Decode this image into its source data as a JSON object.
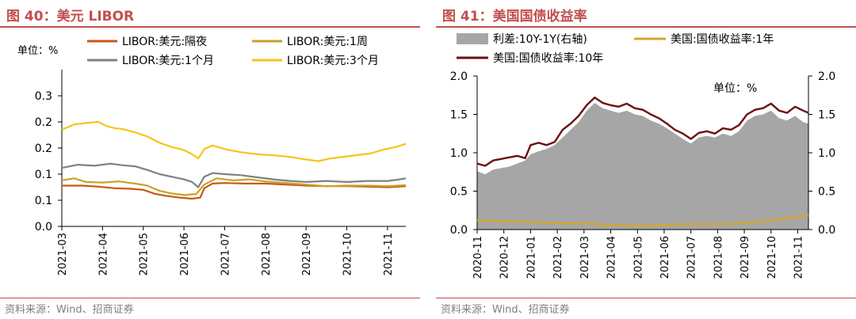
{
  "charts": {
    "left": {
      "title": "图 40：美元 LIBOR",
      "source": "资料来源：Wind、招商证券",
      "unit_label": "单位：%",
      "chart_data": {
        "type": "line",
        "y_range": [
          0.0,
          0.3
        ],
        "y_ticks": [
          "0.0",
          "0.1",
          "0.1",
          "0.2",
          "0.2",
          "0.3"
        ],
        "y_tick_values": [
          0.0,
          0.05,
          0.1,
          0.15,
          0.2,
          0.25
        ],
        "x_ticks": [
          "2021-03",
          "2021-04",
          "2021-05",
          "2021-06",
          "2021-07",
          "2021-08",
          "2021-09",
          "2021-10",
          "2021-11"
        ],
        "x_range_months": [
          0,
          8.45
        ],
        "series": [
          {
            "name": "LIBOR:美元:隔夜",
            "color": "#c65911",
            "points": [
              [
                0,
                0.078
              ],
              [
                0.5,
                0.078
              ],
              [
                0.9,
                0.076
              ],
              [
                1.3,
                0.073
              ],
              [
                1.7,
                0.072
              ],
              [
                2.0,
                0.07
              ],
              [
                2.3,
                0.062
              ],
              [
                2.6,
                0.058
              ],
              [
                2.9,
                0.055
              ],
              [
                3.2,
                0.053
              ],
              [
                3.4,
                0.055
              ],
              [
                3.5,
                0.073
              ],
              [
                3.7,
                0.082
              ],
              [
                4.0,
                0.083
              ],
              [
                4.5,
                0.082
              ],
              [
                5.0,
                0.082
              ],
              [
                5.5,
                0.08
              ],
              [
                6.0,
                0.078
              ],
              [
                6.5,
                0.077
              ],
              [
                7.0,
                0.077
              ],
              [
                7.5,
                0.076
              ],
              [
                8.0,
                0.075
              ],
              [
                8.45,
                0.077
              ]
            ]
          },
          {
            "name": "LIBOR:美元:1周",
            "color": "#c9a227",
            "points": [
              [
                0,
                0.088
              ],
              [
                0.3,
                0.092
              ],
              [
                0.6,
                0.085
              ],
              [
                1.0,
                0.084
              ],
              [
                1.4,
                0.086
              ],
              [
                1.8,
                0.082
              ],
              [
                2.1,
                0.078
              ],
              [
                2.4,
                0.068
              ],
              [
                2.7,
                0.063
              ],
              [
                3.0,
                0.06
              ],
              [
                3.3,
                0.062
              ],
              [
                3.5,
                0.08
              ],
              [
                3.8,
                0.092
              ],
              [
                4.2,
                0.088
              ],
              [
                4.6,
                0.09
              ],
              [
                5.0,
                0.086
              ],
              [
                5.5,
                0.083
              ],
              [
                6.0,
                0.08
              ],
              [
                6.5,
                0.077
              ],
              [
                7.0,
                0.078
              ],
              [
                7.5,
                0.078
              ],
              [
                8.0,
                0.077
              ],
              [
                8.45,
                0.079
              ]
            ]
          },
          {
            "name": "LIBOR:美元:1个月",
            "color": "#808080",
            "points": [
              [
                0,
                0.112
              ],
              [
                0.4,
                0.118
              ],
              [
                0.8,
                0.116
              ],
              [
                1.2,
                0.12
              ],
              [
                1.5,
                0.117
              ],
              [
                1.8,
                0.115
              ],
              [
                2.1,
                0.108
              ],
              [
                2.4,
                0.1
              ],
              [
                2.7,
                0.095
              ],
              [
                3.0,
                0.09
              ],
              [
                3.2,
                0.085
              ],
              [
                3.35,
                0.075
              ],
              [
                3.5,
                0.095
              ],
              [
                3.7,
                0.102
              ],
              [
                4.0,
                0.1
              ],
              [
                4.4,
                0.098
              ],
              [
                4.8,
                0.094
              ],
              [
                5.2,
                0.09
              ],
              [
                5.6,
                0.087
              ],
              [
                6.0,
                0.085
              ],
              [
                6.5,
                0.087
              ],
              [
                7.0,
                0.085
              ],
              [
                7.5,
                0.087
              ],
              [
                8.0,
                0.087
              ],
              [
                8.3,
                0.09
              ],
              [
                8.45,
                0.092
              ]
            ]
          },
          {
            "name": "LIBOR:美元:3个月",
            "color": "#f7c417",
            "points": [
              [
                0,
                0.185
              ],
              [
                0.3,
                0.195
              ],
              [
                0.6,
                0.198
              ],
              [
                0.9,
                0.2
              ],
              [
                1.1,
                0.192
              ],
              [
                1.3,
                0.188
              ],
              [
                1.5,
                0.186
              ],
              [
                1.8,
                0.18
              ],
              [
                2.1,
                0.172
              ],
              [
                2.4,
                0.16
              ],
              [
                2.7,
                0.152
              ],
              [
                3.0,
                0.146
              ],
              [
                3.2,
                0.138
              ],
              [
                3.35,
                0.13
              ],
              [
                3.5,
                0.148
              ],
              [
                3.7,
                0.155
              ],
              [
                4.0,
                0.148
              ],
              [
                4.4,
                0.142
              ],
              [
                4.8,
                0.138
              ],
              [
                5.2,
                0.136
              ],
              [
                5.6,
                0.133
              ],
              [
                6.0,
                0.128
              ],
              [
                6.3,
                0.125
              ],
              [
                6.6,
                0.13
              ],
              [
                7.0,
                0.134
              ],
              [
                7.3,
                0.137
              ],
              [
                7.6,
                0.14
              ],
              [
                7.9,
                0.147
              ],
              [
                8.2,
                0.152
              ],
              [
                8.45,
                0.158
              ]
            ]
          }
        ]
      }
    },
    "right": {
      "title": "图 41：美国国债收益率",
      "source": "资料来源：Wind、招商证券",
      "unit_label": "单位：%",
      "chart_data": {
        "type": "line",
        "y_range": [
          0.0,
          2.0
        ],
        "y_ticks": [
          "0.0",
          "0.5",
          "1.0",
          "1.5",
          "2.0"
        ],
        "y_tick_values": [
          0.0,
          0.5,
          1.0,
          1.5,
          2.0
        ],
        "y2_ticks": [
          "0.0",
          "0.5",
          "1.0",
          "1.5",
          "2.0"
        ],
        "x_ticks": [
          "2020-11",
          "2020-12",
          "2021-01",
          "2021-02",
          "2021-03",
          "2021-04",
          "2021-05",
          "2021-06",
          "2021-07",
          "2021-08",
          "2021-09",
          "2021-10",
          "2021-11"
        ],
        "x_range_months": [
          0,
          12.4
        ],
        "series": [
          {
            "name": "利差:10Y-1Y(右轴)",
            "color": "#a6a6a6",
            "kind": "area",
            "points": [
              [
                0,
                0.76
              ],
              [
                0.3,
                0.72
              ],
              [
                0.6,
                0.78
              ],
              [
                0.9,
                0.8
              ],
              [
                1.2,
                0.82
              ],
              [
                1.5,
                0.86
              ],
              [
                1.8,
                0.9
              ],
              [
                2.0,
                0.98
              ],
              [
                2.3,
                1.02
              ],
              [
                2.6,
                1.05
              ],
              [
                2.9,
                1.1
              ],
              [
                3.2,
                1.2
              ],
              [
                3.5,
                1.3
              ],
              [
                3.8,
                1.4
              ],
              [
                4.1,
                1.55
              ],
              [
                4.4,
                1.65
              ],
              [
                4.7,
                1.58
              ],
              [
                5.0,
                1.55
              ],
              [
                5.3,
                1.52
              ],
              [
                5.6,
                1.55
              ],
              [
                5.9,
                1.5
              ],
              [
                6.2,
                1.48
              ],
              [
                6.5,
                1.42
              ],
              [
                6.8,
                1.38
              ],
              [
                7.1,
                1.32
              ],
              [
                7.4,
                1.25
              ],
              [
                7.7,
                1.18
              ],
              [
                8.0,
                1.12
              ],
              [
                8.3,
                1.2
              ],
              [
                8.6,
                1.22
              ],
              [
                8.9,
                1.2
              ],
              [
                9.2,
                1.25
              ],
              [
                9.5,
                1.22
              ],
              [
                9.8,
                1.28
              ],
              [
                10.1,
                1.42
              ],
              [
                10.4,
                1.48
              ],
              [
                10.7,
                1.5
              ],
              [
                11.0,
                1.55
              ],
              [
                11.3,
                1.45
              ],
              [
                11.6,
                1.42
              ],
              [
                11.9,
                1.48
              ],
              [
                12.2,
                1.4
              ],
              [
                12.4,
                1.38
              ]
            ]
          },
          {
            "name": "美国:国债收益率:1年",
            "color": "#d4a72c",
            "points": [
              [
                0,
                0.12
              ],
              [
                1,
                0.11
              ],
              [
                2,
                0.1
              ],
              [
                3,
                0.08
              ],
              [
                4,
                0.08
              ],
              [
                5,
                0.06
              ],
              [
                6,
                0.05
              ],
              [
                7,
                0.06
              ],
              [
                8,
                0.07
              ],
              [
                9,
                0.07
              ],
              [
                10,
                0.08
              ],
              [
                11,
                0.12
              ],
              [
                11.8,
                0.16
              ],
              [
                12.4,
                0.18
              ]
            ]
          },
          {
            "name": "美国:国债收益率:10年",
            "color": "#6b0f0f",
            "points": [
              [
                0,
                0.86
              ],
              [
                0.3,
                0.83
              ],
              [
                0.6,
                0.9
              ],
              [
                0.9,
                0.92
              ],
              [
                1.2,
                0.94
              ],
              [
                1.5,
                0.96
              ],
              [
                1.8,
                0.93
              ],
              [
                2.0,
                1.1
              ],
              [
                2.3,
                1.13
              ],
              [
                2.6,
                1.1
              ],
              [
                2.9,
                1.14
              ],
              [
                3.2,
                1.3
              ],
              [
                3.5,
                1.38
              ],
              [
                3.8,
                1.48
              ],
              [
                4.1,
                1.62
              ],
              [
                4.4,
                1.72
              ],
              [
                4.7,
                1.65
              ],
              [
                5.0,
                1.62
              ],
              [
                5.3,
                1.6
              ],
              [
                5.6,
                1.64
              ],
              [
                5.9,
                1.58
              ],
              [
                6.2,
                1.56
              ],
              [
                6.5,
                1.5
              ],
              [
                6.8,
                1.45
              ],
              [
                7.1,
                1.38
              ],
              [
                7.4,
                1.3
              ],
              [
                7.7,
                1.25
              ],
              [
                8.0,
                1.18
              ],
              [
                8.3,
                1.26
              ],
              [
                8.6,
                1.28
              ],
              [
                8.9,
                1.25
              ],
              [
                9.2,
                1.32
              ],
              [
                9.5,
                1.3
              ],
              [
                9.8,
                1.36
              ],
              [
                10.1,
                1.5
              ],
              [
                10.4,
                1.56
              ],
              [
                10.7,
                1.58
              ],
              [
                11.0,
                1.64
              ],
              [
                11.3,
                1.55
              ],
              [
                11.6,
                1.52
              ],
              [
                11.9,
                1.6
              ],
              [
                12.2,
                1.55
              ],
              [
                12.4,
                1.52
              ]
            ]
          }
        ]
      }
    }
  }
}
